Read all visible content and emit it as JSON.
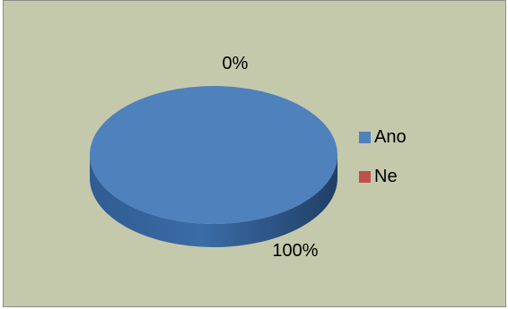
{
  "chart_data": {
    "type": "pie",
    "style": "3d",
    "categories": [
      "Ano",
      "Ne"
    ],
    "values": [
      100,
      0
    ],
    "data_labels": [
      "100%",
      "0%"
    ],
    "colors": {
      "Ano": "#4f81bd",
      "Ne": "#c0504d",
      "background": "#c4c9ab"
    },
    "legend": {
      "position": "right",
      "entries": [
        "Ano",
        "Ne"
      ]
    },
    "title": ""
  }
}
